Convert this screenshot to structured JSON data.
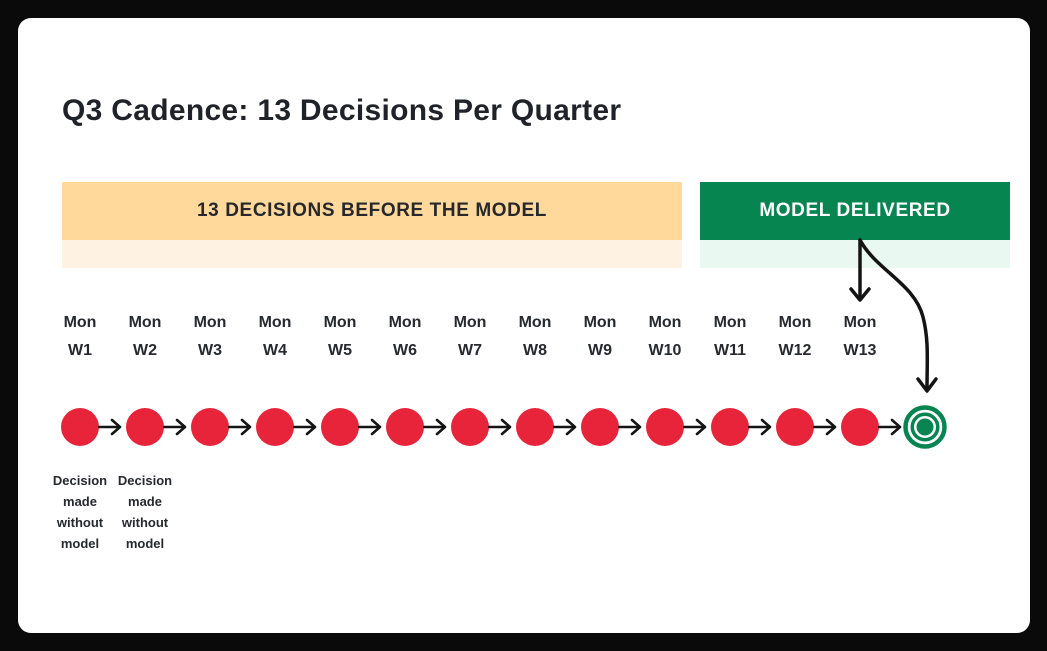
{
  "title": "Q3 Cadence: 13 Decisions Per Quarter",
  "banners": {
    "before": {
      "label": "13 DECISIONS BEFORE THE MODEL"
    },
    "delivered": {
      "label": "MODEL DELIVERED"
    }
  },
  "timeline": {
    "decision_count": 13,
    "weeks": [
      {
        "day": "Mon",
        "week": "W1"
      },
      {
        "day": "Mon",
        "week": "W2"
      },
      {
        "day": "Mon",
        "week": "W3"
      },
      {
        "day": "Mon",
        "week": "W4"
      },
      {
        "day": "Mon",
        "week": "W5"
      },
      {
        "day": "Mon",
        "week": "W6"
      },
      {
        "day": "Mon",
        "week": "W7"
      },
      {
        "day": "Mon",
        "week": "W8"
      },
      {
        "day": "Mon",
        "week": "W9"
      },
      {
        "day": "Mon",
        "week": "W10"
      },
      {
        "day": "Mon",
        "week": "W11"
      },
      {
        "day": "Mon",
        "week": "W12"
      },
      {
        "day": "Mon",
        "week": "W13"
      }
    ],
    "notes": [
      {
        "under_week": "W1",
        "text": "Decision made without model"
      },
      {
        "under_week": "W2",
        "text": "Decision made without model"
      }
    ],
    "end_marker": "model-delivered-target"
  },
  "icons": {
    "connector": "arrow-right-icon",
    "banner_straight": "arrow-down-icon",
    "banner_curved": "curved-arrow-down-icon",
    "target": "bullseye-target-icon"
  },
  "colors": {
    "ink": "#1F2329",
    "decision_red": "#E8243B",
    "brand_green": "#078551",
    "banner_orange": "#FFD89B",
    "banner_orange_light": "#FEF3E3",
    "banner_green_light": "#E9F8F0",
    "arrow_black": "#141414",
    "canvas_white": "#FFFFFF",
    "frame_black": "#0A0A0A"
  }
}
